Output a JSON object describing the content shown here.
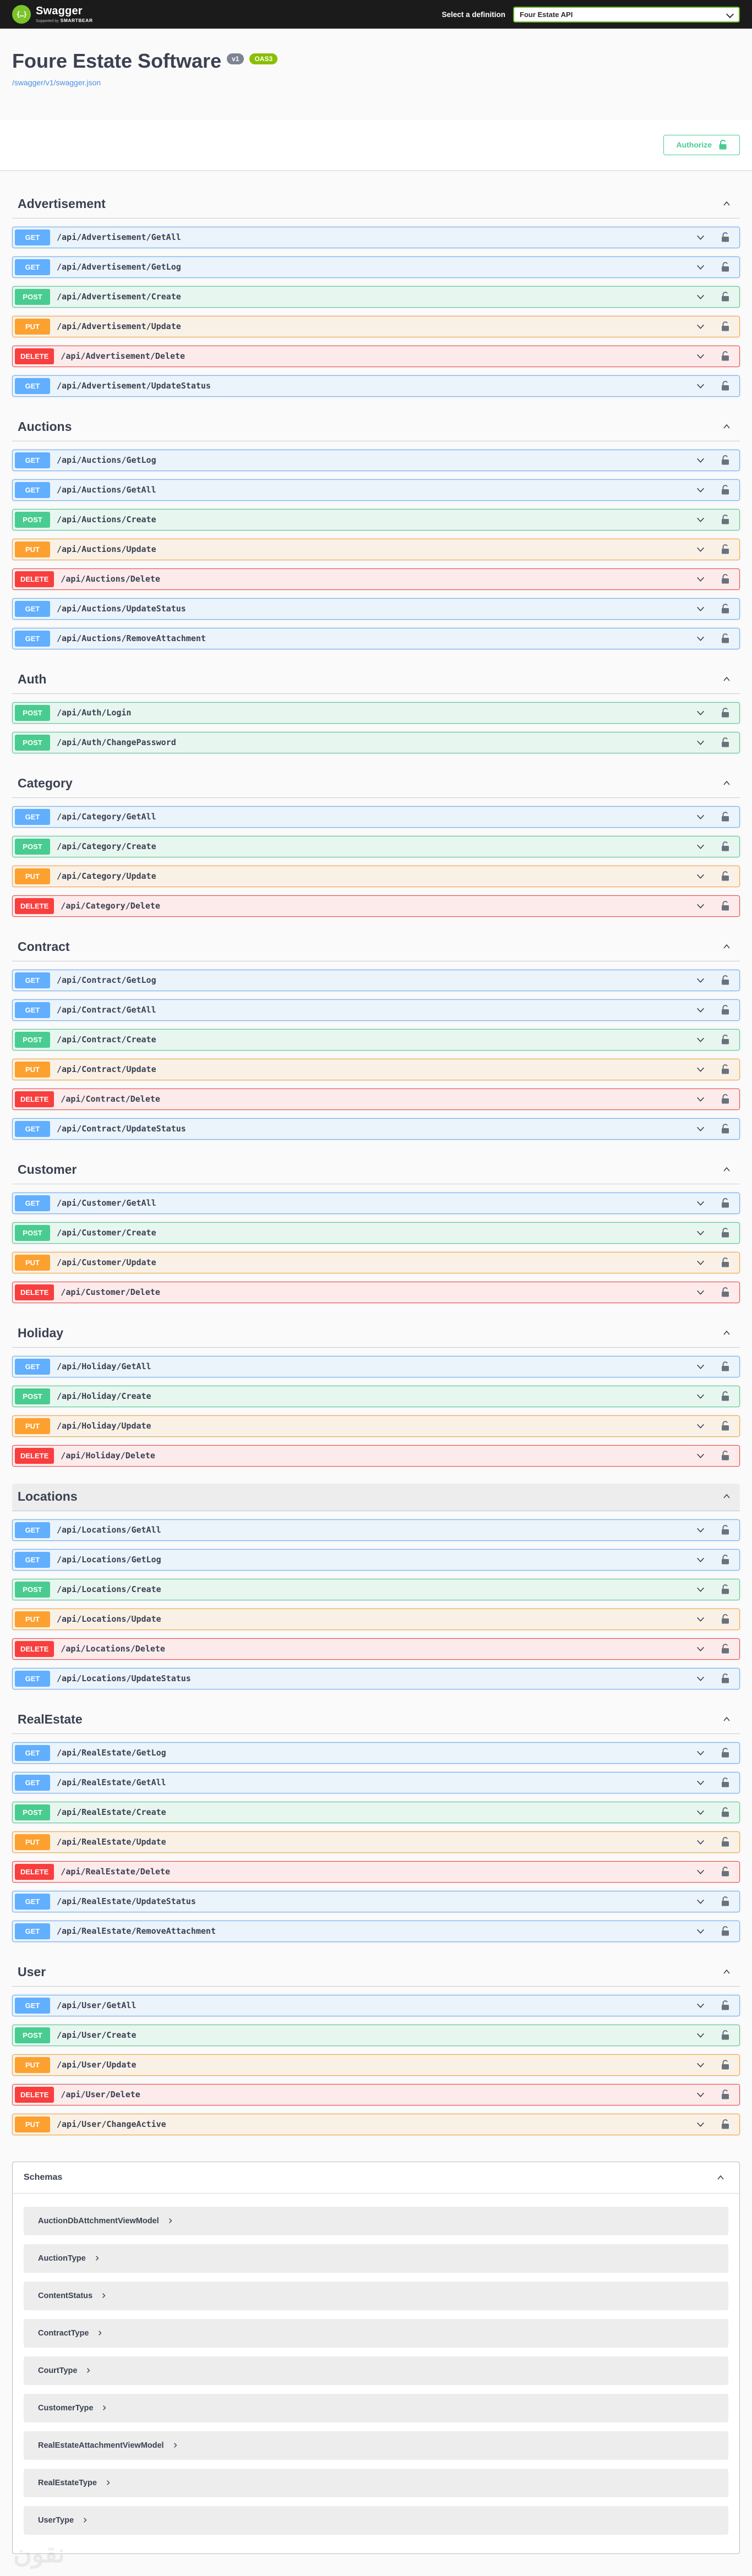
{
  "topbar": {
    "brand": "Swagger",
    "supported_by_prefix": "Supported by",
    "supported_by": "SMARTBEAR",
    "select_label": "Select a definition",
    "selected_definition": "Four Estate API"
  },
  "info": {
    "title": "Foure Estate Software",
    "version_badge": "v1",
    "oas_badge": "OAS3",
    "spec_link": "/swagger/v1/swagger.json"
  },
  "auth": {
    "authorize_label": "Authorize"
  },
  "icons": {
    "swagger_logo_glyph": "{…}"
  },
  "colors": {
    "topbar_bg": "#1b1b1b",
    "brand_green": "#7cc32a",
    "select_border_green": "#62b020",
    "authorize_green": "#49cc90",
    "oas_badge_green": "#89bf04",
    "version_badge_gray": "#7d8492",
    "link_blue": "#4990e2",
    "get_blue": "#61affe",
    "post_green": "#49cc90",
    "put_orange": "#fca130",
    "delete_red": "#f93e3e",
    "text_dark": "#3b4151"
  },
  "sections": [
    {
      "name": "Advertisement",
      "highlighted": false,
      "endpoints": [
        {
          "method": "GET",
          "path": "/api/Advertisement/GetAll"
        },
        {
          "method": "GET",
          "path": "/api/Advertisement/GetLog"
        },
        {
          "method": "POST",
          "path": "/api/Advertisement/Create"
        },
        {
          "method": "PUT",
          "path": "/api/Advertisement/Update"
        },
        {
          "method": "DELETE",
          "path": "/api/Advertisement/Delete"
        },
        {
          "method": "GET",
          "path": "/api/Advertisement/UpdateStatus"
        }
      ]
    },
    {
      "name": "Auctions",
      "highlighted": false,
      "endpoints": [
        {
          "method": "GET",
          "path": "/api/Auctions/GetLog"
        },
        {
          "method": "GET",
          "path": "/api/Auctions/GetAll"
        },
        {
          "method": "POST",
          "path": "/api/Auctions/Create"
        },
        {
          "method": "PUT",
          "path": "/api/Auctions/Update"
        },
        {
          "method": "DELETE",
          "path": "/api/Auctions/Delete"
        },
        {
          "method": "GET",
          "path": "/api/Auctions/UpdateStatus"
        },
        {
          "method": "GET",
          "path": "/api/Auctions/RemoveAttachment"
        }
      ]
    },
    {
      "name": "Auth",
      "highlighted": false,
      "endpoints": [
        {
          "method": "POST",
          "path": "/api/Auth/Login"
        },
        {
          "method": "POST",
          "path": "/api/Auth/ChangePassword"
        }
      ]
    },
    {
      "name": "Category",
      "highlighted": false,
      "endpoints": [
        {
          "method": "GET",
          "path": "/api/Category/GetAll"
        },
        {
          "method": "POST",
          "path": "/api/Category/Create"
        },
        {
          "method": "PUT",
          "path": "/api/Category/Update"
        },
        {
          "method": "DELETE",
          "path": "/api/Category/Delete"
        }
      ]
    },
    {
      "name": "Contract",
      "highlighted": false,
      "endpoints": [
        {
          "method": "GET",
          "path": "/api/Contract/GetLog"
        },
        {
          "method": "GET",
          "path": "/api/Contract/GetAll"
        },
        {
          "method": "POST",
          "path": "/api/Contract/Create"
        },
        {
          "method": "PUT",
          "path": "/api/Contract/Update"
        },
        {
          "method": "DELETE",
          "path": "/api/Contract/Delete"
        },
        {
          "method": "GET",
          "path": "/api/Contract/UpdateStatus"
        }
      ]
    },
    {
      "name": "Customer",
      "highlighted": false,
      "endpoints": [
        {
          "method": "GET",
          "path": "/api/Customer/GetAll"
        },
        {
          "method": "POST",
          "path": "/api/Customer/Create"
        },
        {
          "method": "PUT",
          "path": "/api/Customer/Update"
        },
        {
          "method": "DELETE",
          "path": "/api/Customer/Delete"
        }
      ]
    },
    {
      "name": "Holiday",
      "highlighted": false,
      "endpoints": [
        {
          "method": "GET",
          "path": "/api/Holiday/GetAll"
        },
        {
          "method": "POST",
          "path": "/api/Holiday/Create"
        },
        {
          "method": "PUT",
          "path": "/api/Holiday/Update"
        },
        {
          "method": "DELETE",
          "path": "/api/Holiday/Delete"
        }
      ]
    },
    {
      "name": "Locations",
      "highlighted": true,
      "endpoints": [
        {
          "method": "GET",
          "path": "/api/Locations/GetAll"
        },
        {
          "method": "GET",
          "path": "/api/Locations/GetLog"
        },
        {
          "method": "POST",
          "path": "/api/Locations/Create"
        },
        {
          "method": "PUT",
          "path": "/api/Locations/Update"
        },
        {
          "method": "DELETE",
          "path": "/api/Locations/Delete"
        },
        {
          "method": "GET",
          "path": "/api/Locations/UpdateStatus"
        }
      ]
    },
    {
      "name": "RealEstate",
      "highlighted": false,
      "endpoints": [
        {
          "method": "GET",
          "path": "/api/RealEstate/GetLog"
        },
        {
          "method": "GET",
          "path": "/api/RealEstate/GetAll"
        },
        {
          "method": "POST",
          "path": "/api/RealEstate/Create"
        },
        {
          "method": "PUT",
          "path": "/api/RealEstate/Update"
        },
        {
          "method": "DELETE",
          "path": "/api/RealEstate/Delete"
        },
        {
          "method": "GET",
          "path": "/api/RealEstate/UpdateStatus"
        },
        {
          "method": "GET",
          "path": "/api/RealEstate/RemoveAttachment"
        }
      ]
    },
    {
      "name": "User",
      "highlighted": false,
      "endpoints": [
        {
          "method": "GET",
          "path": "/api/User/GetAll"
        },
        {
          "method": "POST",
          "path": "/api/User/Create"
        },
        {
          "method": "PUT",
          "path": "/api/User/Update"
        },
        {
          "method": "DELETE",
          "path": "/api/User/Delete"
        },
        {
          "method": "PUT",
          "path": "/api/User/ChangeActive"
        }
      ]
    }
  ],
  "schemas": {
    "title": "Schemas",
    "models": [
      "AuctionDbAttchmentViewModel",
      "AuctionType",
      "ContentStatus",
      "ContractType",
      "CourtType",
      "CustomerType",
      "RealEstateAttachmentViewModel",
      "RealEstateType",
      "UserType"
    ]
  },
  "watermark": "نقون"
}
